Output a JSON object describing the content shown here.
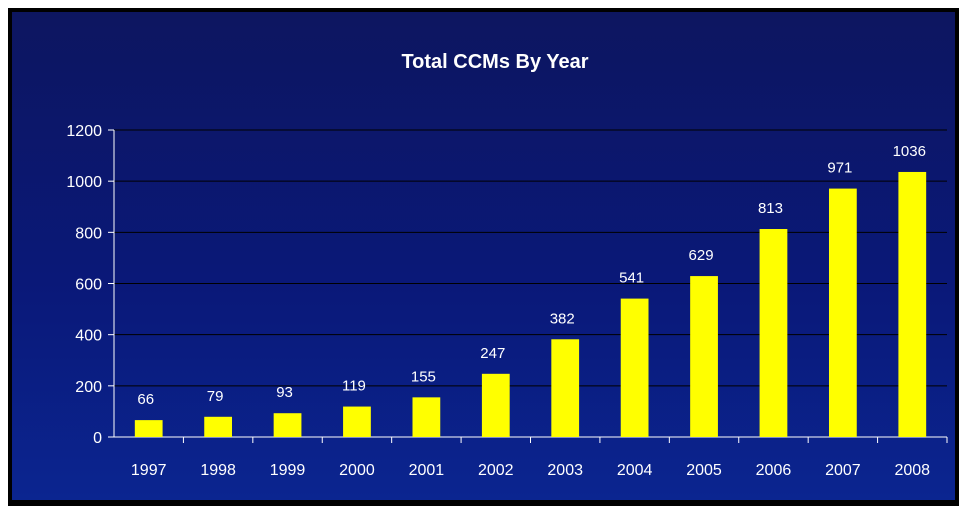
{
  "chart_data": {
    "type": "bar",
    "title": "Total CCMs By Year",
    "xlabel": "",
    "ylabel": "",
    "categories": [
      "1997",
      "1998",
      "1999",
      "2000",
      "2001",
      "2002",
      "2003",
      "2004",
      "2005",
      "2006",
      "2007",
      "2008"
    ],
    "values": [
      66,
      79,
      93,
      119,
      155,
      247,
      382,
      541,
      629,
      813,
      971,
      1036
    ],
    "ylim": [
      0,
      1200
    ],
    "yticks": [
      0,
      200,
      400,
      600,
      800,
      1000,
      1200
    ],
    "grid": true,
    "legend": "none",
    "colors": {
      "bar": "#ffff00",
      "background": "#0b1a7a",
      "text": "#ffffff",
      "grid": "#000000"
    }
  }
}
